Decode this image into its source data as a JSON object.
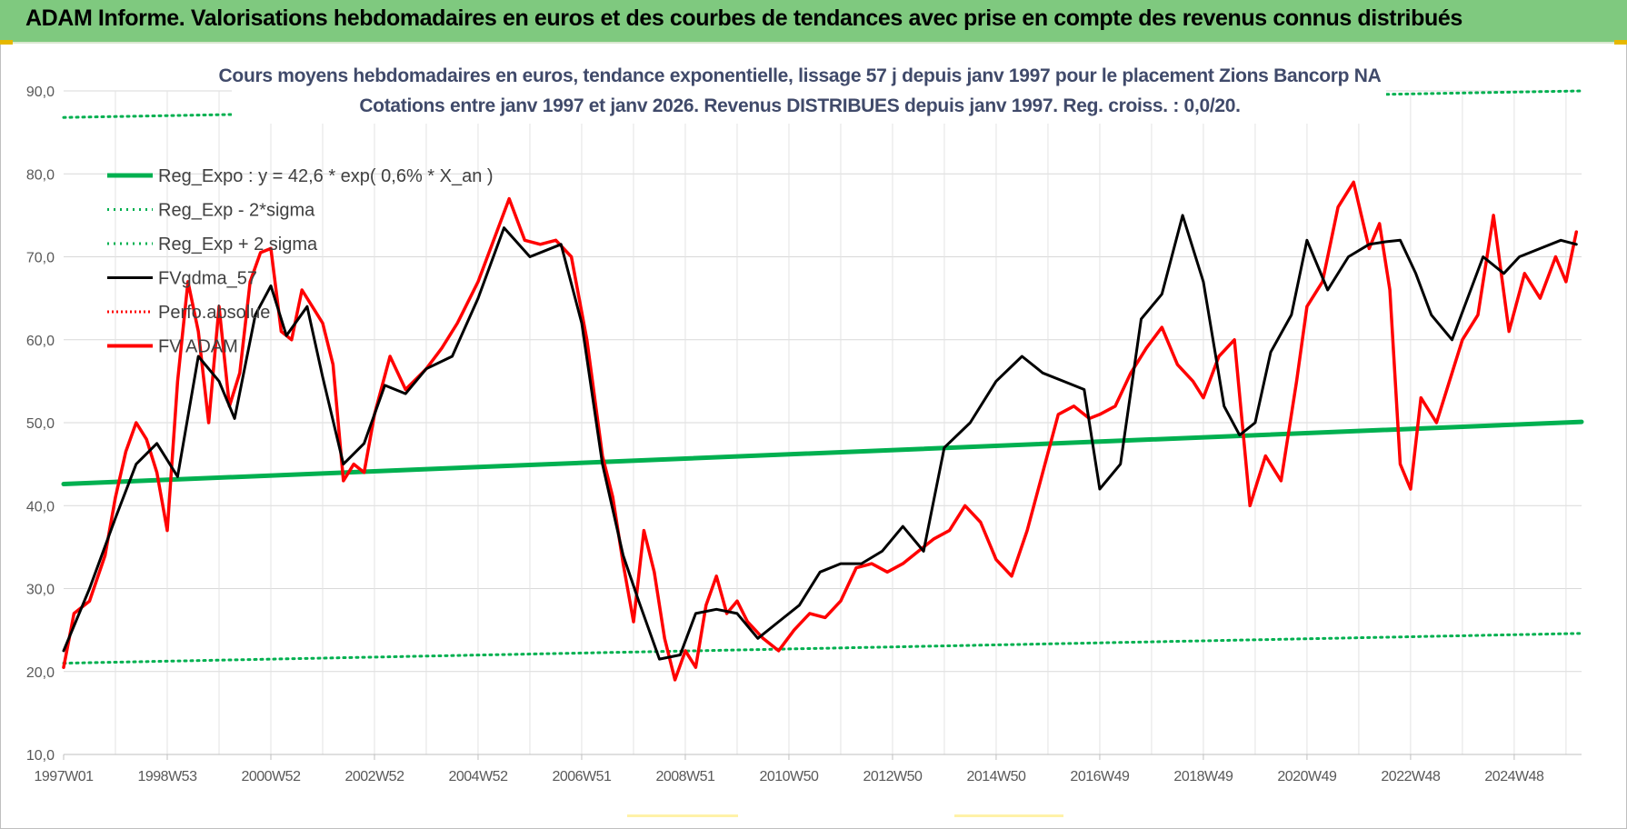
{
  "header": {
    "title": "ADAM Informe. Valorisations hebdomadaires en euros et des courbes de tendances avec prise en compte des revenus connus distribués"
  },
  "chart_title": {
    "line1": "Cours moyens hebdomadaires en euros, tendance exponentielle, lissage 57 j depuis janv 1997 pour le placement Zions Bancorp NA",
    "line2": "Cotations entre janv 1997 et janv 2026. Revenus DISTRIBUES depuis janv 1997. Reg. croiss. : 0,0/20."
  },
  "chart_data": {
    "type": "line",
    "ylim": [
      10,
      90
    ],
    "y_ticks": [
      "10,0",
      "20,0",
      "30,0",
      "40,0",
      "50,0",
      "60,0",
      "70,0",
      "80,0",
      "90,0"
    ],
    "x_range": [
      1997.0,
      2026.3
    ],
    "x_tick_labels": [
      "1997W01",
      "1998W53",
      "2000W52",
      "2002W52",
      "2004W52",
      "2006W51",
      "2008W51",
      "2010W50",
      "2012W50",
      "2014W50",
      "2016W49",
      "2018W49",
      "2020W49",
      "2022W48",
      "2024W48"
    ],
    "grid": true,
    "legend_position": "top-left",
    "colors": {
      "reg_expo": "#00b050",
      "band": "#00b050",
      "gdma": "#000000",
      "perfo": "#ff0000",
      "fv": "#ff0000"
    },
    "series": [
      {
        "name": "Reg_Expo : y = 42,6 * exp( 0,6% *  X_an )",
        "style": "thick-solid",
        "x": [
          1997.0,
          2026.3
        ],
        "values": [
          42.6,
          50.1
        ]
      },
      {
        "name": "Reg_Exp - 2*sigma",
        "style": "dotted",
        "x": [
          1997.0,
          2026.3
        ],
        "values": [
          21.0,
          24.6
        ]
      },
      {
        "name": "Reg_Exp + 2 sigma",
        "style": "dotted",
        "x": [
          1997.0,
          2026.3
        ],
        "values": [
          86.8,
          90.0
        ]
      },
      {
        "name": "FVgdma_57",
        "style": "solid",
        "x": [
          1997.0,
          1997.5,
          1998.0,
          1998.4,
          1998.8,
          1999.2,
          1999.6,
          2000.0,
          2000.3,
          2000.7,
          2001.0,
          2001.3,
          2001.7,
          2002.0,
          2002.4,
          2002.8,
          2003.2,
          2003.6,
          2004.0,
          2004.5,
          2005.0,
          2005.5,
          2006.0,
          2006.6,
          2007.0,
          2007.4,
          2007.8,
          2008.1,
          2008.5,
          2008.9,
          2009.2,
          2009.6,
          2010.0,
          2010.4,
          2010.8,
          2011.2,
          2011.6,
          2012.0,
          2012.4,
          2012.8,
          2013.2,
          2013.6,
          2014.0,
          2014.5,
          2015.0,
          2015.5,
          2015.9,
          2016.3,
          2016.7,
          2017.0,
          2017.4,
          2017.8,
          2018.2,
          2018.6,
          2019.0,
          2019.4,
          2019.7,
          2020.0,
          2020.3,
          2020.7,
          2021.0,
          2021.4,
          2021.8,
          2022.2,
          2022.5,
          2022.8,
          2023.1,
          2023.4,
          2023.8,
          2024.1,
          2024.4,
          2024.8,
          2025.1,
          2025.5,
          2025.9,
          2026.2
        ],
        "values": [
          22.5,
          30.0,
          38.5,
          45.0,
          47.5,
          43.5,
          58.0,
          55.0,
          50.5,
          63.0,
          66.5,
          60.5,
          64.0,
          55.5,
          45.0,
          47.5,
          54.5,
          53.5,
          56.5,
          58.0,
          65.0,
          73.5,
          70.0,
          71.5,
          62.0,
          45.0,
          34.0,
          28.5,
          21.5,
          22.0,
          27.0,
          27.5,
          27.0,
          24.0,
          26.0,
          28.0,
          32.0,
          33.0,
          33.0,
          34.5,
          37.5,
          34.5,
          47.0,
          50.0,
          55.0,
          58.0,
          56.0,
          55.0,
          54.0,
          42.0,
          45.0,
          62.5,
          65.5,
          75.0,
          67.0,
          52.0,
          48.5,
          50.0,
          58.5,
          63.0,
          72.0,
          66.0,
          70.0,
          71.5,
          71.8,
          72.0,
          68.0,
          63.0,
          60.0,
          65.0,
          70.0,
          68.0,
          70.0,
          71.0,
          72.0,
          71.5
        ]
      },
      {
        "name": "Perfo.absolue",
        "style": "dotted",
        "x": [],
        "values": []
      },
      {
        "name": "FV ADAM",
        "style": "thick-solid",
        "x": [
          1997.0,
          1997.2,
          1997.5,
          1997.8,
          1998.0,
          1998.2,
          1998.4,
          1998.6,
          1998.8,
          1999.0,
          1999.2,
          1999.4,
          1999.6,
          1999.8,
          2000.0,
          2000.2,
          2000.4,
          2000.6,
          2000.8,
          2001.0,
          2001.2,
          2001.4,
          2001.6,
          2001.8,
          2002.0,
          2002.2,
          2002.4,
          2002.6,
          2002.8,
          2003.0,
          2003.3,
          2003.6,
          2004.0,
          2004.3,
          2004.6,
          2005.0,
          2005.3,
          2005.6,
          2005.9,
          2006.2,
          2006.5,
          2006.8,
          2007.1,
          2007.4,
          2007.6,
          2007.8,
          2008.0,
          2008.2,
          2008.4,
          2008.6,
          2008.8,
          2009.0,
          2009.2,
          2009.4,
          2009.6,
          2009.8,
          2010.0,
          2010.2,
          2010.5,
          2010.8,
          2011.1,
          2011.4,
          2011.7,
          2012.0,
          2012.3,
          2012.6,
          2012.9,
          2013.2,
          2013.5,
          2013.8,
          2014.1,
          2014.4,
          2014.7,
          2015.0,
          2015.3,
          2015.6,
          2015.9,
          2016.2,
          2016.5,
          2016.8,
          2017.0,
          2017.3,
          2017.6,
          2017.9,
          2018.2,
          2018.5,
          2018.8,
          2019.0,
          2019.3,
          2019.6,
          2019.9,
          2020.2,
          2020.5,
          2020.8,
          2021.0,
          2021.3,
          2021.6,
          2021.9,
          2022.2,
          2022.4,
          2022.6,
          2022.8,
          2023.0,
          2023.2,
          2023.5,
          2023.8,
          2024.0,
          2024.3,
          2024.6,
          2024.9,
          2025.2,
          2025.5,
          2025.8,
          2026.0,
          2026.2
        ],
        "values": [
          20.5,
          27.0,
          28.5,
          34.0,
          41.0,
          46.5,
          50.0,
          48.0,
          44.0,
          37.0,
          55.0,
          67.0,
          61.0,
          50.0,
          64.0,
          52.0,
          56.0,
          67.0,
          70.5,
          71.0,
          61.0,
          60.0,
          66.0,
          64.0,
          62.0,
          57.0,
          43.0,
          45.0,
          44.0,
          51.0,
          58.0,
          54.0,
          56.5,
          59.0,
          62.0,
          67.0,
          72.0,
          77.0,
          72.0,
          71.5,
          72.0,
          70.0,
          60.0,
          46.0,
          41.0,
          33.0,
          26.0,
          37.0,
          32.0,
          24.0,
          19.0,
          22.5,
          20.5,
          28.0,
          31.5,
          27.0,
          28.5,
          26.0,
          24.0,
          22.5,
          25.0,
          27.0,
          26.5,
          28.5,
          32.5,
          33.0,
          32.0,
          33.0,
          34.5,
          36.0,
          37.0,
          40.0,
          38.0,
          33.5,
          31.5,
          37.0,
          44.0,
          51.0,
          52.0,
          50.5,
          51.0,
          52.0,
          56.0,
          59.0,
          61.5,
          57.0,
          55.0,
          53.0,
          58.0,
          60.0,
          40.0,
          46.0,
          43.0,
          55.0,
          64.0,
          67.0,
          76.0,
          79.0,
          71.0,
          74.0,
          66.0,
          45.0,
          42.0,
          53.0,
          50.0,
          56.0,
          60.0,
          63.0,
          75.0,
          61.0,
          68.0,
          65.0,
          70.0,
          67.0,
          73.0
        ]
      }
    ]
  }
}
